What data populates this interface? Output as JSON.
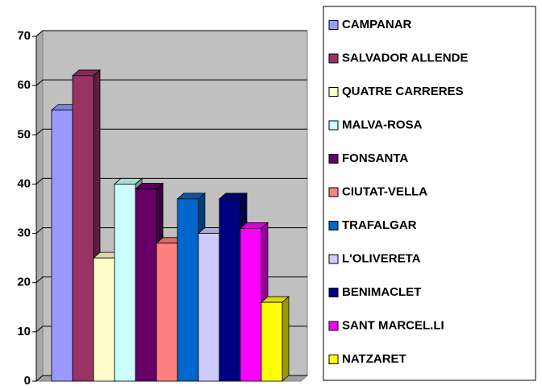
{
  "chart_data": {
    "type": "bar3d",
    "ylim": [
      0,
      70
    ],
    "yticks": [
      0,
      10,
      20,
      30,
      40,
      50,
      60,
      70
    ],
    "grid": true,
    "legend": "right",
    "series": [
      {
        "name": "CAMPANAR",
        "color": "#9999ff",
        "values": [
          55
        ]
      },
      {
        "name": "SALVADOR ALLENDE",
        "color": "#993366",
        "values": [
          62
        ]
      },
      {
        "name": "QUATRE CARRERES",
        "color": "#ffffcc",
        "values": [
          25
        ]
      },
      {
        "name": "MALVA-ROSA",
        "color": "#ccffff",
        "values": [
          40
        ]
      },
      {
        "name": "FONSANTA",
        "color": "#660066",
        "values": [
          39
        ]
      },
      {
        "name": "CIUTAT-VELLA",
        "color": "#ff8080",
        "values": [
          28
        ]
      },
      {
        "name": "TRAFALGAR",
        "color": "#0066cc",
        "values": [
          37
        ]
      },
      {
        "name": "L'OLIVERETA",
        "color": "#ccccff",
        "values": [
          30
        ]
      },
      {
        "name": "BENIMACLET",
        "color": "#000080",
        "values": [
          37
        ]
      },
      {
        "name": "SANT  MARCEL.LI",
        "color": "#ff00ff",
        "values": [
          31
        ]
      },
      {
        "name": "NATZARET",
        "color": "#ffff00",
        "values": [
          16
        ]
      }
    ]
  }
}
